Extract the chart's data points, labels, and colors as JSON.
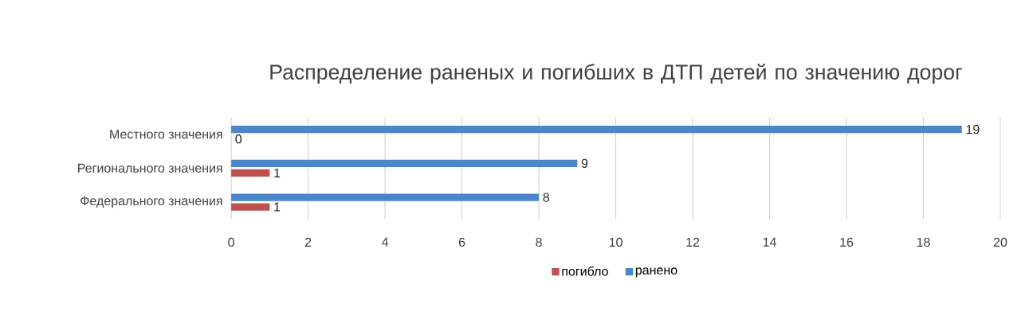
{
  "chart_data": {
    "type": "bar",
    "orientation": "horizontal",
    "title": "Распределение раненых и погибших в ДТП детей по значению дорог",
    "categories": [
      "Местного значения",
      "Регионального значения",
      "Федерального значения"
    ],
    "series": [
      {
        "name": "погибло",
        "color": "#c0504d",
        "values": [
          0,
          1,
          1
        ]
      },
      {
        "name": "ранено",
        "color": "#4a86c8",
        "values": [
          19,
          9,
          8
        ]
      }
    ],
    "xlim": [
      0,
      20
    ],
    "xticks": [
      0,
      2,
      4,
      6,
      8,
      10,
      12,
      14,
      16,
      18,
      20
    ],
    "grid": "x",
    "legend": "bottom",
    "data_labels": true
  }
}
